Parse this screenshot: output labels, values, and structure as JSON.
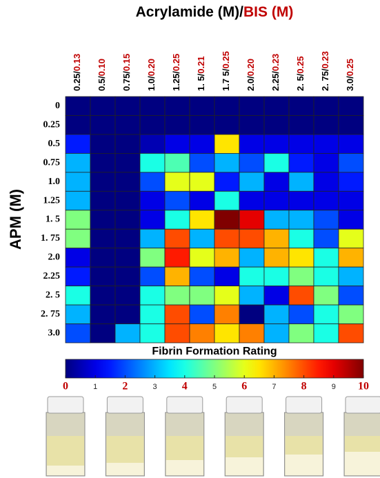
{
  "chart_data": {
    "type": "heatmap",
    "title": [
      "Acrylamide (M)/",
      "BIS (M)"
    ],
    "y_label": "APM (M)",
    "x_categories": [
      [
        "0.25/",
        "0.13"
      ],
      [
        "0.5/",
        "0.10"
      ],
      [
        "0.75/",
        "0.15"
      ],
      [
        "1.0/",
        "0.20"
      ],
      [
        "1.25/",
        "0.25"
      ],
      [
        "1. 5/",
        "0.21"
      ],
      [
        "1.7 5/",
        "0.25"
      ],
      [
        "2.0/",
        "0.20"
      ],
      [
        "2.25/",
        "0.23"
      ],
      [
        "2. 5/",
        "0.25"
      ],
      [
        "2. 75/",
        "0.23"
      ],
      [
        "3.0/",
        "0.25"
      ]
    ],
    "y_categories": [
      "0",
      "0.25",
      "0.5",
      "0.75",
      "1.0",
      "1.25",
      "1. 5",
      "1. 75",
      "2.0",
      "2.25",
      "2. 5",
      "2. 75",
      "3.0"
    ],
    "values": [
      [
        0,
        0,
        0,
        0,
        0,
        0,
        0,
        0,
        0,
        0,
        0,
        0
      ],
      [
        0,
        0,
        0,
        0,
        0,
        0,
        0,
        0,
        0,
        0,
        0,
        0
      ],
      [
        1.5,
        0,
        0,
        0.5,
        1,
        1,
        6.5,
        1,
        1,
        1,
        1,
        1
      ],
      [
        3,
        0,
        0,
        4,
        4.5,
        2,
        3,
        2,
        4,
        1.5,
        1,
        2
      ],
      [
        3,
        0,
        0,
        2,
        6,
        6,
        1.5,
        3,
        1,
        3,
        1,
        1.5
      ],
      [
        3,
        0,
        0,
        1,
        2,
        1,
        4,
        1,
        1,
        1,
        1,
        1
      ],
      [
        5,
        0,
        0,
        1,
        4,
        6.5,
        10,
        9,
        3,
        3,
        2,
        1
      ],
      [
        5,
        0,
        0,
        3,
        8,
        3,
        8,
        8,
        7,
        4,
        2,
        6
      ],
      [
        1,
        0,
        0,
        5,
        8.5,
        6,
        7,
        3,
        7,
        6.5,
        4,
        7
      ],
      [
        1.5,
        0,
        0,
        2,
        7,
        2,
        1,
        4,
        4,
        5,
        4,
        3
      ],
      [
        4,
        0,
        0,
        4,
        5,
        5,
        6,
        3,
        1,
        8,
        5,
        2
      ],
      [
        3,
        0,
        0,
        4,
        8,
        2,
        7.5,
        0,
        3,
        2,
        4,
        5
      ],
      [
        2,
        0,
        3,
        4,
        8,
        7.5,
        6.5,
        7.5,
        3,
        5,
        4,
        8
      ]
    ],
    "colormap": "jet",
    "zlim": [
      0,
      10
    ],
    "colorbar_title": "Fibrin Formation Rating",
    "colorbar_ticks": [
      0,
      1,
      2,
      3,
      4,
      5,
      6,
      7,
      8,
      9,
      10
    ]
  }
}
